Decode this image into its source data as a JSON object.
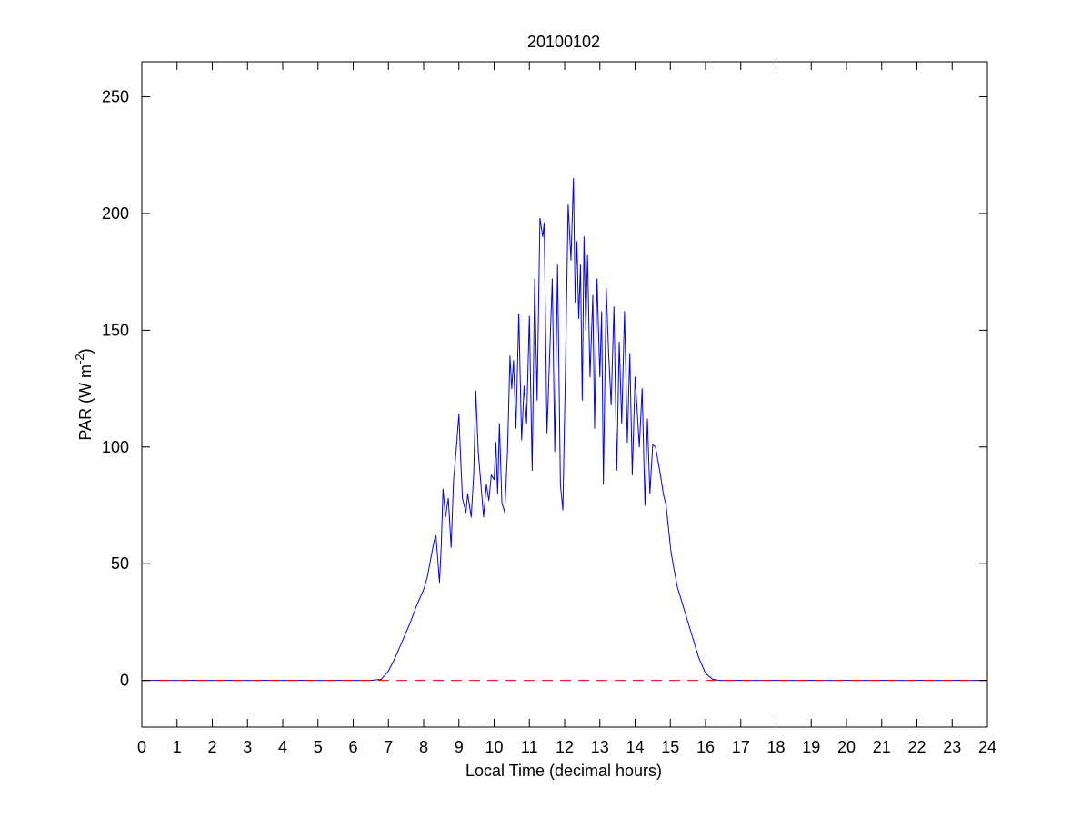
{
  "chart_data": {
    "type": "line",
    "title": "20100102",
    "xlabel": "Local Time (decimal hours)",
    "ylabel": {
      "prefix": "PAR (W m",
      "superscript": "-2",
      "suffix": ")"
    },
    "xlim": [
      0,
      24
    ],
    "ylim": [
      -20,
      265
    ],
    "x_ticks": [
      "0",
      "1",
      "2",
      "3",
      "4",
      "5",
      "6",
      "7",
      "8",
      "9",
      "10",
      "11",
      "12",
      "13",
      "14",
      "15",
      "16",
      "17",
      "18",
      "19",
      "20",
      "21",
      "22",
      "23",
      "24"
    ],
    "y_ticks": [
      "0",
      "50",
      "100",
      "150",
      "200",
      "250"
    ],
    "grid": false,
    "legend": "none",
    "series": [
      {
        "role": "par",
        "color": "#0000ff",
        "style": "solid",
        "x": [
          0,
          6.5,
          6.8,
          7.0,
          7.2,
          7.4,
          7.6,
          7.8,
          8.0,
          8.1,
          8.2,
          8.3,
          8.35,
          8.45,
          8.5,
          8.55,
          8.62,
          8.7,
          8.78,
          8.85,
          8.92,
          9.0,
          9.05,
          9.1,
          9.2,
          9.25,
          9.35,
          9.42,
          9.48,
          9.55,
          9.62,
          9.7,
          9.78,
          9.85,
          9.92,
          10.0,
          10.05,
          10.1,
          10.15,
          10.22,
          10.3,
          10.38,
          10.45,
          10.5,
          10.55,
          10.62,
          10.7,
          10.78,
          10.85,
          10.92,
          11.0,
          11.08,
          11.15,
          11.22,
          11.3,
          11.38,
          11.42,
          11.5,
          11.58,
          11.65,
          11.72,
          11.8,
          11.88,
          11.95,
          12.02,
          12.1,
          12.18,
          12.25,
          12.3,
          12.35,
          12.4,
          12.45,
          12.5,
          12.55,
          12.6,
          12.65,
          12.72,
          12.8,
          12.85,
          12.92,
          13.0,
          13.05,
          13.1,
          13.18,
          13.25,
          13.32,
          13.4,
          13.48,
          13.55,
          13.62,
          13.7,
          13.78,
          13.85,
          13.92,
          14.0,
          14.05,
          14.12,
          14.2,
          14.28,
          14.35,
          14.42,
          14.5,
          14.58,
          14.65,
          14.72,
          14.8,
          14.88,
          14.95,
          15.02,
          15.1,
          15.2,
          15.4,
          15.6,
          15.8,
          16.0,
          16.2,
          16.4,
          16.6,
          16.8,
          17.0,
          17.2,
          17.4,
          17.6,
          24
        ],
        "y": [
          0,
          0,
          0.5,
          4,
          10,
          17,
          24,
          32,
          39,
          44,
          52,
          60,
          62,
          42,
          58,
          82,
          70,
          78,
          57,
          86,
          98,
          114,
          95,
          78,
          72,
          80,
          70,
          88,
          124,
          98,
          85,
          70,
          84,
          77,
          88,
          86,
          102,
          80,
          110,
          76,
          72,
          98,
          139,
          125,
          137,
          108,
          157,
          103,
          126,
          110,
          156,
          90,
          172,
          120,
          198,
          190,
          196,
          106,
          141,
          172,
          98,
          178,
          84,
          73,
          130,
          204,
          180,
          215,
          162,
          188,
          155,
          178,
          120,
          190,
          150,
          182,
          130,
          165,
          108,
          172,
          130,
          158,
          84,
          168,
          140,
          118,
          160,
          90,
          145,
          110,
          158,
          102,
          140,
          88,
          130,
          118,
          100,
          125,
          75,
          112,
          80,
          101,
          100,
          94,
          88,
          80,
          75,
          65,
          55,
          48,
          40,
          30,
          20,
          10,
          3,
          0.5,
          0,
          0,
          0,
          0,
          0,
          0,
          0,
          0
        ]
      },
      {
        "role": "zero-reference",
        "color": "#ff0000",
        "style": "dashed",
        "x": [
          0,
          24
        ],
        "y": [
          0,
          0
        ]
      }
    ]
  }
}
